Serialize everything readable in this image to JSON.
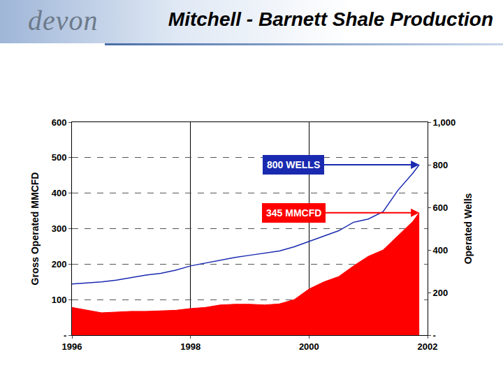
{
  "chart_data": {
    "type": "area",
    "title": "Mitchell - Barnett Shale Production",
    "logo": "devon",
    "x_label": null,
    "y_label": "Gross Operated MMCFD",
    "y2_label": "Operated Wells",
    "x": [
      1996,
      1996.25,
      1996.5,
      1996.75,
      1997,
      1997.25,
      1997.5,
      1997.75,
      1998,
      1998.25,
      1998.5,
      1998.75,
      1999,
      1999.25,
      1999.5,
      1999.75,
      2000,
      2000.25,
      2000.5,
      2000.75,
      2001,
      2001.25,
      2001.5,
      2001.75,
      2001.86
    ],
    "series": [
      {
        "type": "area",
        "color": "#ff0000",
        "annotation": "345 MMCFD",
        "values": [
          78,
          70,
          63,
          65,
          67,
          67,
          68,
          70,
          75,
          78,
          85,
          87,
          87,
          85,
          88,
          100,
          130,
          150,
          165,
          195,
          222,
          240,
          280,
          320,
          345
        ]
      },
      {
        "type": "line",
        "color": "#1a2ab0",
        "axis": "y2",
        "annotation": "800 WELLS",
        "values": [
          240,
          245,
          250,
          258,
          270,
          282,
          290,
          305,
          325,
          338,
          350,
          365,
          375,
          385,
          395,
          415,
          440,
          465,
          490,
          530,
          545,
          580,
          680,
          760,
          800
        ]
      }
    ],
    "xlim": [
      1996,
      2002
    ],
    "xticks": [
      1996,
      1998,
      2000,
      2002
    ],
    "ylim": [
      0,
      600
    ],
    "yticks": [
      {
        "value": 0,
        "label": "-"
      },
      100,
      200,
      300,
      400,
      500,
      600
    ],
    "y2lim": [
      0,
      1000
    ],
    "y2ticks": [
      {
        "value": 0,
        "label": "-"
      },
      200,
      400,
      600,
      800,
      {
        "value": 1000,
        "label": "1,000"
      }
    ],
    "grid": true
  }
}
